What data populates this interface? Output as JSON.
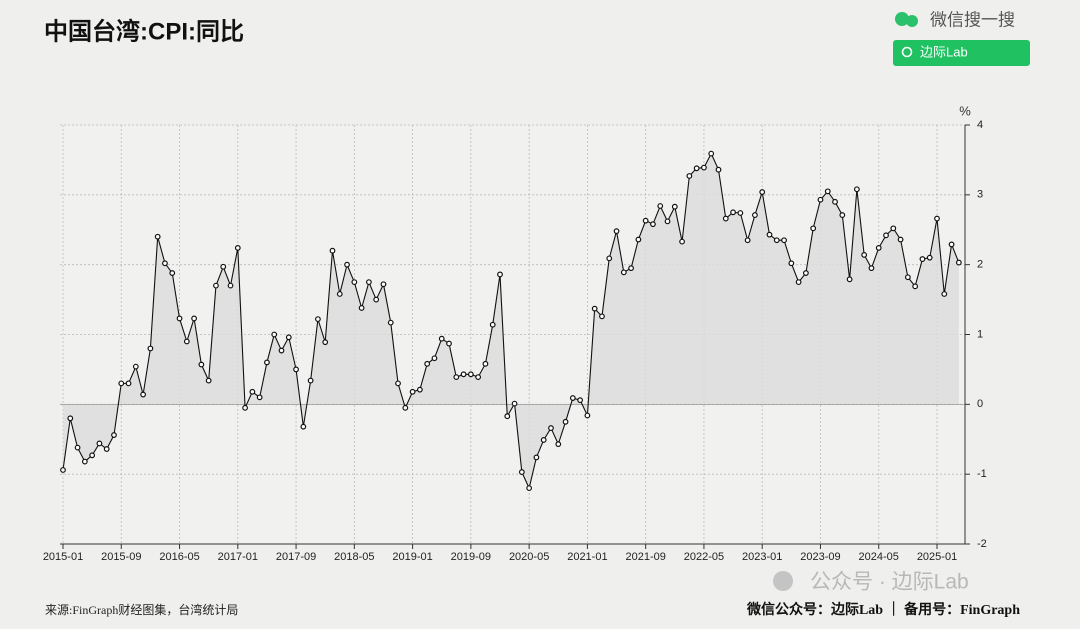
{
  "chart_data": {
    "type": "line",
    "title": "中国台湾:CPI:同比",
    "y_unit": "%",
    "x": [
      "2015-01",
      "2015-02",
      "2015-03",
      "2015-04",
      "2015-05",
      "2015-06",
      "2015-07",
      "2015-08",
      "2015-09",
      "2015-10",
      "2015-11",
      "2015-12",
      "2016-01",
      "2016-02",
      "2016-03",
      "2016-04",
      "2016-05",
      "2016-06",
      "2016-07",
      "2016-08",
      "2016-09",
      "2016-10",
      "2016-11",
      "2016-12",
      "2017-01",
      "2017-02",
      "2017-03",
      "2017-04",
      "2017-05",
      "2017-06",
      "2017-07",
      "2017-08",
      "2017-09",
      "2017-10",
      "2017-11",
      "2017-12",
      "2018-01",
      "2018-02",
      "2018-03",
      "2018-04",
      "2018-05",
      "2018-06",
      "2018-07",
      "2018-08",
      "2018-09",
      "2018-10",
      "2018-11",
      "2018-12",
      "2019-01",
      "2019-02",
      "2019-03",
      "2019-04",
      "2019-05",
      "2019-06",
      "2019-07",
      "2019-08",
      "2019-09",
      "2019-10",
      "2019-11",
      "2019-12",
      "2020-01",
      "2020-02",
      "2020-03",
      "2020-04",
      "2020-05",
      "2020-06",
      "2020-07",
      "2020-08",
      "2020-09",
      "2020-10",
      "2020-11",
      "2020-12",
      "2021-01",
      "2021-02",
      "2021-03",
      "2021-04",
      "2021-05",
      "2021-06",
      "2021-07",
      "2021-08",
      "2021-09",
      "2021-10",
      "2021-11",
      "2021-12",
      "2022-01",
      "2022-02",
      "2022-03",
      "2022-04",
      "2022-05",
      "2022-06",
      "2022-07",
      "2022-08",
      "2022-09",
      "2022-10",
      "2022-11",
      "2022-12",
      "2023-01",
      "2023-02",
      "2023-03",
      "2023-04",
      "2023-05",
      "2023-06",
      "2023-07",
      "2023-08",
      "2023-09",
      "2023-10",
      "2023-11",
      "2023-12",
      "2024-01",
      "2024-02",
      "2024-03",
      "2024-04",
      "2024-05",
      "2024-06",
      "2024-07",
      "2024-08",
      "2024-09",
      "2024-10",
      "2024-11",
      "2024-12",
      "2025-01",
      "2025-02",
      "2025-03",
      "2025-04"
    ],
    "series": [
      {
        "name": "CPI:同比",
        "color": "#111111",
        "values": [
          -0.94,
          -0.2,
          -0.62,
          -0.82,
          -0.73,
          -0.56,
          -0.64,
          -0.44,
          0.3,
          0.3,
          0.54,
          0.14,
          0.8,
          2.4,
          2.02,
          1.88,
          1.23,
          0.9,
          1.23,
          0.57,
          0.34,
          1.7,
          1.97,
          1.7,
          2.24,
          -0.05,
          0.18,
          0.1,
          0.6,
          1.0,
          0.77,
          0.96,
          0.5,
          -0.32,
          0.34,
          1.22,
          0.89,
          2.2,
          1.58,
          2.0,
          1.75,
          1.38,
          1.75,
          1.5,
          1.72,
          1.17,
          0.3,
          -0.05,
          0.18,
          0.21,
          0.58,
          0.66,
          0.94,
          0.87,
          0.39,
          0.43,
          0.43,
          0.39,
          0.58,
          1.14,
          1.86,
          -0.17,
          0.01,
          -0.97,
          -1.2,
          -0.76,
          -0.51,
          -0.34,
          -0.57,
          -0.25,
          0.09,
          0.06,
          -0.16,
          1.37,
          1.26,
          2.09,
          2.48,
          1.89,
          1.95,
          2.36,
          2.63,
          2.58,
          2.84,
          2.62,
          2.83,
          2.33,
          3.27,
          3.38,
          3.39,
          3.59,
          3.36,
          2.66,
          2.75,
          2.74,
          2.35,
          2.71,
          3.04,
          2.43,
          2.35,
          2.35,
          2.02,
          1.75,
          1.88,
          2.52,
          2.93,
          3.05,
          2.9,
          2.71,
          1.79,
          3.08,
          2.14,
          1.95,
          2.24,
          2.42,
          2.52,
          2.36,
          1.82,
          1.69,
          2.08,
          2.1,
          2.66,
          1.58,
          2.29,
          2.03
        ]
      }
    ],
    "xticks": [
      "2015-01",
      "2015-09",
      "2016-05",
      "2017-01",
      "2017-09",
      "2018-05",
      "2019-01",
      "2019-09",
      "2020-05",
      "2021-01",
      "2021-09",
      "2022-05",
      "2023-01",
      "2023-09",
      "2024-05",
      "2025-01"
    ],
    "ylim": [
      -2,
      4
    ],
    "yticks": [
      -2,
      -1,
      0,
      1,
      2,
      3,
      4
    ],
    "grid": true,
    "area_color": "#dcdcdc",
    "source": "来源:FinGraph财经图集，台湾统计局"
  },
  "footer": {
    "credit": "微信公众号：边际Lab ｜ 备用号：FinGraph",
    "watermark": "公众号 · 边际Lab"
  },
  "search_widget": {
    "label": "微信搜一搜",
    "query": "边际Lab"
  }
}
